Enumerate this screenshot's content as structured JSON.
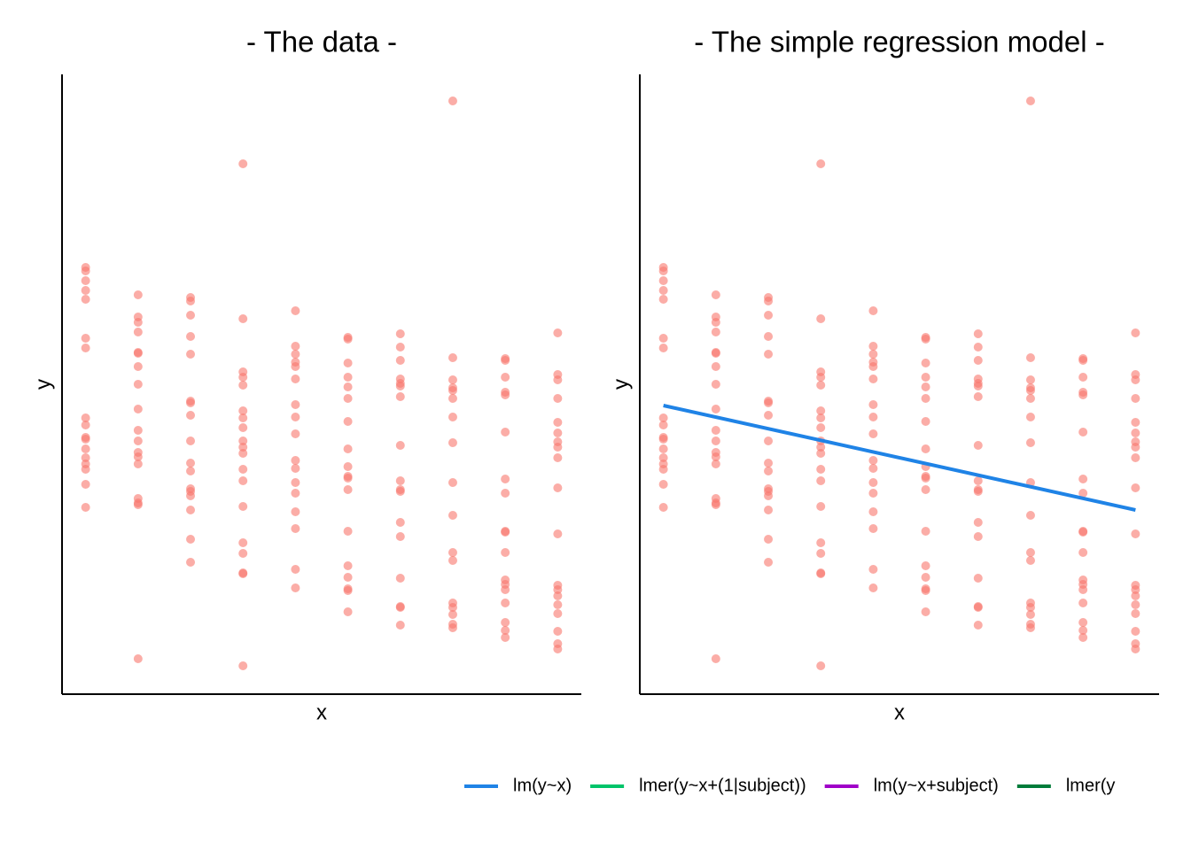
{
  "chart_data": [
    {
      "type": "scatter",
      "title": "- The data -",
      "x_label": "x",
      "y_label": "y",
      "xlim": [
        0.55,
        10.45
      ],
      "ylim": [
        0,
        700
      ],
      "grid": false,
      "color": "#f8766d",
      "x": [
        1,
        1,
        1,
        1,
        1,
        1,
        1,
        1,
        1,
        1,
        1,
        1,
        1,
        1,
        1,
        1,
        1,
        2,
        2,
        2,
        2,
        2,
        2,
        2,
        2,
        2,
        2,
        2,
        2,
        2,
        2,
        2,
        2,
        2,
        2,
        3,
        3,
        3,
        3,
        3,
        3,
        3,
        3,
        3,
        3,
        3,
        3,
        3,
        3,
        3,
        3,
        3,
        4,
        4,
        4,
        4,
        4,
        4,
        4,
        4,
        4,
        4,
        4,
        4,
        4,
        4,
        4,
        4,
        4,
        4,
        4,
        5,
        5,
        5,
        5,
        5,
        5,
        5,
        5,
        5,
        5,
        5,
        5,
        5,
        5,
        5,
        5,
        5,
        6,
        6,
        6,
        6,
        6,
        6,
        6,
        6,
        6,
        6,
        6,
        6,
        6,
        6,
        6,
        6,
        6,
        6,
        7,
        7,
        7,
        7,
        7,
        7,
        7,
        7,
        7,
        7,
        7,
        7,
        7,
        7,
        7,
        7,
        7,
        8,
        8,
        8,
        8,
        8,
        8,
        8,
        8,
        8,
        8,
        8,
        8,
        8,
        8,
        8,
        8,
        8,
        9,
        9,
        9,
        9,
        9,
        9,
        9,
        9,
        9,
        9,
        9,
        9,
        9,
        9,
        9,
        9,
        9,
        9,
        10,
        10,
        10,
        10,
        10,
        10,
        10,
        10,
        10,
        10,
        10,
        10,
        10,
        10,
        10,
        10,
        10,
        10,
        10
      ],
      "values": [
        482,
        478,
        467,
        456,
        446,
        402,
        391,
        312,
        304,
        290,
        288,
        277,
        267,
        260,
        254,
        237,
        211,
        451,
        426,
        420,
        409,
        386,
        385,
        370,
        350,
        322,
        298,
        286,
        273,
        268,
        260,
        221,
        216,
        214,
        40,
        448,
        444,
        428,
        404,
        384,
        331,
        329,
        315,
        286,
        261,
        252,
        232,
        229,
        224,
        208,
        175,
        149,
        599,
        424,
        364,
        358,
        349,
        320,
        312,
        301,
        286,
        279,
        272,
        254,
        241,
        212,
        171,
        159,
        137,
        136,
        32,
        433,
        393,
        384,
        375,
        370,
        356,
        327,
        313,
        294,
        264,
        255,
        239,
        227,
        206,
        187,
        141,
        120,
        403,
        401,
        374,
        358,
        347,
        334,
        308,
        277,
        257,
        246,
        244,
        231,
        184,
        145,
        132,
        119,
        117,
        93,
        407,
        392,
        377,
        356,
        351,
        348,
        336,
        281,
        241,
        231,
        229,
        194,
        178,
        131,
        99,
        98,
        78,
        670,
        380,
        355,
        346,
        343,
        334,
        313,
        284,
        239,
        202,
        160,
        151,
        103,
        98,
        90,
        79,
        75,
        379,
        377,
        358,
        341,
        338,
        296,
        243,
        227,
        184,
        183,
        160,
        129,
        124,
        118,
        103,
        81,
        72,
        64,
        408,
        361,
        355,
        334,
        307,
        295,
        285,
        279,
        267,
        233,
        181,
        123,
        118,
        111,
        101,
        91,
        71,
        57,
        51
      ]
    },
    {
      "type": "scatter",
      "title": "- The simple regression model -",
      "x_label": "x",
      "y_label": "y",
      "xlim": [
        0.55,
        10.45
      ],
      "ylim": [
        0,
        700
      ],
      "grid": false,
      "color": "#f8766d",
      "legend": "bottom",
      "x": [
        1,
        1,
        1,
        1,
        1,
        1,
        1,
        1,
        1,
        1,
        1,
        1,
        1,
        1,
        1,
        1,
        1,
        2,
        2,
        2,
        2,
        2,
        2,
        2,
        2,
        2,
        2,
        2,
        2,
        2,
        2,
        2,
        2,
        2,
        2,
        3,
        3,
        3,
        3,
        3,
        3,
        3,
        3,
        3,
        3,
        3,
        3,
        3,
        3,
        3,
        3,
        3,
        4,
        4,
        4,
        4,
        4,
        4,
        4,
        4,
        4,
        4,
        4,
        4,
        4,
        4,
        4,
        4,
        4,
        4,
        4,
        5,
        5,
        5,
        5,
        5,
        5,
        5,
        5,
        5,
        5,
        5,
        5,
        5,
        5,
        5,
        5,
        5,
        6,
        6,
        6,
        6,
        6,
        6,
        6,
        6,
        6,
        6,
        6,
        6,
        6,
        6,
        6,
        6,
        6,
        6,
        7,
        7,
        7,
        7,
        7,
        7,
        7,
        7,
        7,
        7,
        7,
        7,
        7,
        7,
        7,
        7,
        7,
        8,
        8,
        8,
        8,
        8,
        8,
        8,
        8,
        8,
        8,
        8,
        8,
        8,
        8,
        8,
        8,
        8,
        9,
        9,
        9,
        9,
        9,
        9,
        9,
        9,
        9,
        9,
        9,
        9,
        9,
        9,
        9,
        9,
        9,
        9,
        10,
        10,
        10,
        10,
        10,
        10,
        10,
        10,
        10,
        10,
        10,
        10,
        10,
        10,
        10,
        10,
        10,
        10,
        10
      ],
      "values": [
        482,
        478,
        467,
        456,
        446,
        402,
        391,
        312,
        304,
        290,
        288,
        277,
        267,
        260,
        254,
        237,
        211,
        451,
        426,
        420,
        409,
        386,
        385,
        370,
        350,
        322,
        298,
        286,
        273,
        268,
        260,
        221,
        216,
        214,
        40,
        448,
        444,
        428,
        404,
        384,
        331,
        329,
        315,
        286,
        261,
        252,
        232,
        229,
        224,
        208,
        175,
        149,
        599,
        424,
        364,
        358,
        349,
        320,
        312,
        301,
        286,
        279,
        272,
        254,
        241,
        212,
        171,
        159,
        137,
        136,
        32,
        433,
        393,
        384,
        375,
        370,
        356,
        327,
        313,
        294,
        264,
        255,
        239,
        227,
        206,
        187,
        141,
        120,
        403,
        401,
        374,
        358,
        347,
        334,
        308,
        277,
        257,
        246,
        244,
        231,
        184,
        145,
        132,
        119,
        117,
        93,
        407,
        392,
        377,
        356,
        351,
        348,
        336,
        281,
        241,
        231,
        229,
        194,
        178,
        131,
        99,
        98,
        78,
        670,
        380,
        355,
        346,
        343,
        334,
        313,
        284,
        239,
        202,
        160,
        151,
        103,
        98,
        90,
        79,
        75,
        379,
        377,
        358,
        341,
        338,
        296,
        243,
        227,
        184,
        183,
        160,
        129,
        124,
        118,
        103,
        81,
        72,
        64,
        408,
        361,
        355,
        334,
        307,
        295,
        285,
        279,
        267,
        233,
        181,
        123,
        118,
        111,
        101,
        91,
        71,
        57,
        51
      ],
      "series": [
        {
          "name": "lm(y~x)",
          "color": "#1f83e6",
          "x": [
            1,
            10
          ],
          "values": [
            326,
            208
          ]
        },
        {
          "name": "lmer(y~x+(1|subject))",
          "color": "#00c46a",
          "x": [],
          "values": []
        },
        {
          "name": "lm(y~x+subject)",
          "color": "#a000c8",
          "x": [],
          "values": []
        },
        {
          "name": "lmer(y",
          "color": "#007c3a",
          "x": [],
          "values": []
        }
      ]
    }
  ]
}
